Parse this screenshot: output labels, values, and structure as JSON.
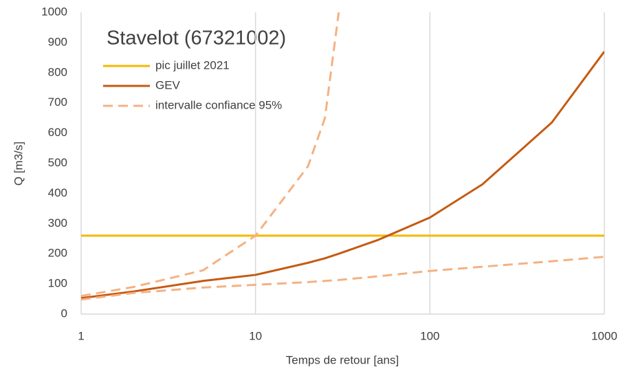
{
  "chart_data": {
    "type": "line",
    "title": "Stavelot (67321002)",
    "x_label": "Temps de retour [ans]",
    "y_label": "Q [m3/s]",
    "x": [
      1,
      2,
      5,
      10,
      20,
      25,
      30,
      50,
      100,
      200,
      500,
      1000
    ],
    "series": [
      {
        "name": "pic juillet 2021",
        "color": "#f5b800",
        "style": "solid",
        "values": [
          260,
          260,
          260,
          260,
          260,
          260,
          260,
          260,
          260,
          260,
          260,
          260
        ]
      },
      {
        "name": "GEV",
        "color": "#c55a11",
        "style": "solid",
        "values": [
          53,
          75,
          110,
          130,
          170,
          185,
          200,
          245,
          320,
          430,
          635,
          870
        ]
      },
      {
        "name": "intervalle confiance 95%",
        "color": "#f4b183",
        "style": "dashed",
        "lower": [
          48,
          70,
          88,
          97,
          106,
          110,
          113,
          125,
          143,
          157,
          175,
          190
        ],
        "upper": [
          60,
          90,
          145,
          260,
          490,
          650,
          1000,
          null,
          null,
          null,
          null,
          null
        ]
      }
    ],
    "xlim": [
      1,
      1000
    ],
    "xticks": [
      1,
      10,
      100,
      1000
    ],
    "xscale": "log",
    "ylim": [
      0,
      1000
    ],
    "yticks": [
      0,
      100,
      200,
      300,
      400,
      500,
      600,
      700,
      800,
      900,
      1000
    ],
    "grid": "x"
  }
}
